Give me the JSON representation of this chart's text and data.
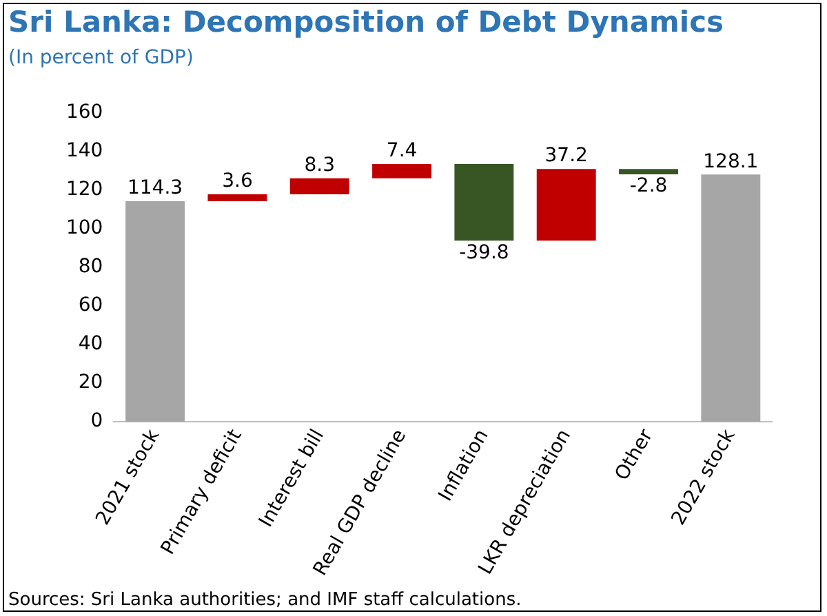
{
  "chart_data": {
    "type": "bar",
    "title": "Sri Lanka: Decomposition of Debt Dynamics",
    "subtitle": "(In percent of GDP)",
    "categories": [
      "2021 stock",
      "Primary deficit",
      "Interest bill",
      "Real GDP decline",
      "Inflation",
      "LKR depreciation",
      "Other",
      "2022 stock"
    ],
    "values": [
      114.3,
      3.6,
      8.3,
      7.4,
      -39.8,
      37.2,
      -2.8,
      128.1
    ],
    "base": [
      0,
      114.3,
      117.9,
      126.2,
      133.6,
      93.8,
      131,
      0
    ],
    "colors": [
      "#a6a6a6",
      "#c00000",
      "#c00000",
      "#c00000",
      "#375623",
      "#c00000",
      "#375623",
      "#a6a6a6"
    ],
    "ylim": [
      0,
      160
    ],
    "yticks": [
      0,
      20,
      40,
      60,
      80,
      100,
      120,
      140,
      160
    ],
    "grid": false,
    "legend": false,
    "data_labels": true,
    "annotations": [
      "Sources: Sri Lanka authorities; and IMF staff calculations."
    ]
  }
}
